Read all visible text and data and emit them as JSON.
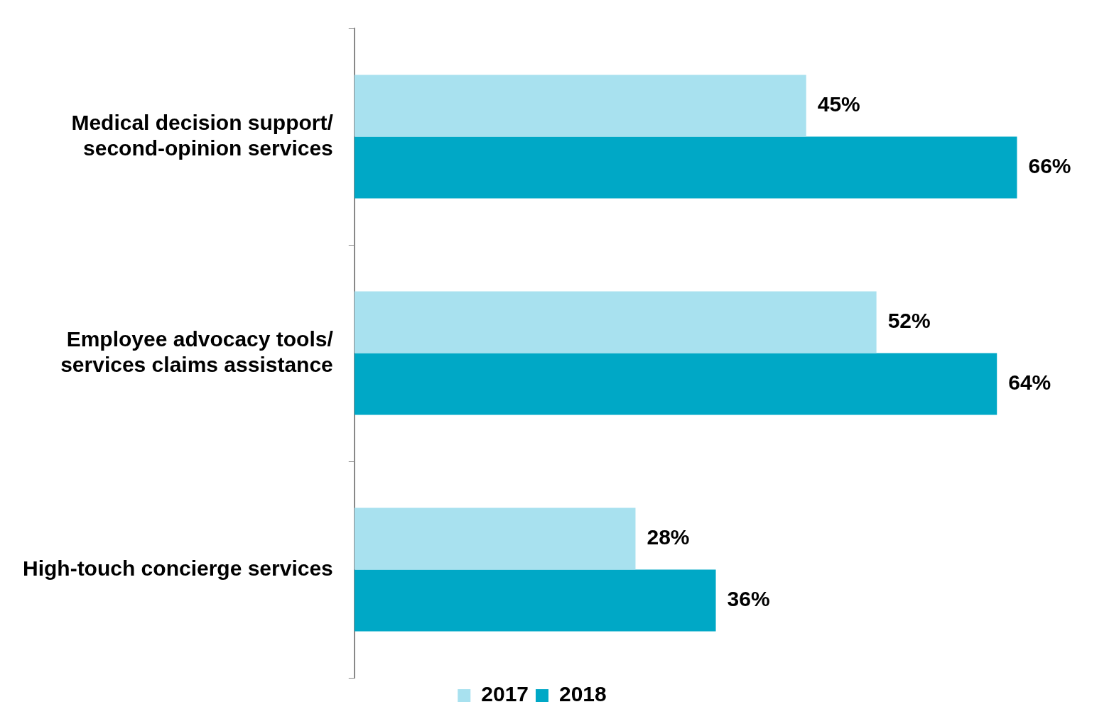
{
  "chart_data": {
    "type": "bar",
    "orientation": "horizontal",
    "categories": [
      "Medical decision support/ second-opinion services",
      "Employee advocacy tools/ services claims assistance",
      "High-touch concierge services"
    ],
    "series": [
      {
        "name": "2017",
        "color": "#a8e1ef",
        "values": [
          45,
          52,
          28
        ],
        "value_labels": [
          "45%",
          "52%",
          "28%"
        ]
      },
      {
        "name": "2018",
        "color": "#00a8c6",
        "values": [
          66,
          64,
          36
        ],
        "value_labels": [
          "66%",
          "64%",
          "36%"
        ]
      }
    ],
    "legend": "bottom",
    "grid": false,
    "tick_labels": "y"
  }
}
